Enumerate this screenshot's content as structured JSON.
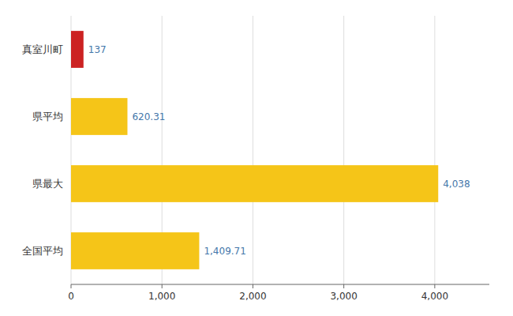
{
  "chart_data": {
    "type": "bar",
    "orientation": "horizontal",
    "categories": [
      "真室川町",
      "県平均",
      "県最大",
      "全国平均"
    ],
    "values": [
      137,
      620.31,
      4038,
      1409.71
    ],
    "value_labels": [
      "137",
      "620.31",
      "4,038",
      "1,409.71"
    ],
    "colors": [
      "#cc2222",
      "#f5c518",
      "#f5c518",
      "#f5c518"
    ],
    "xlim": [
      0,
      4600
    ],
    "xticks": [
      0,
      {
        "value": 1000,
        "label": "1,000"
      },
      {
        "value": 2000,
        "label": "2,000"
      },
      {
        "value": 3000,
        "label": "3,000"
      },
      {
        "value": 4000,
        "label": "4,000"
      }
    ],
    "grid": true,
    "data_labels": true
  }
}
